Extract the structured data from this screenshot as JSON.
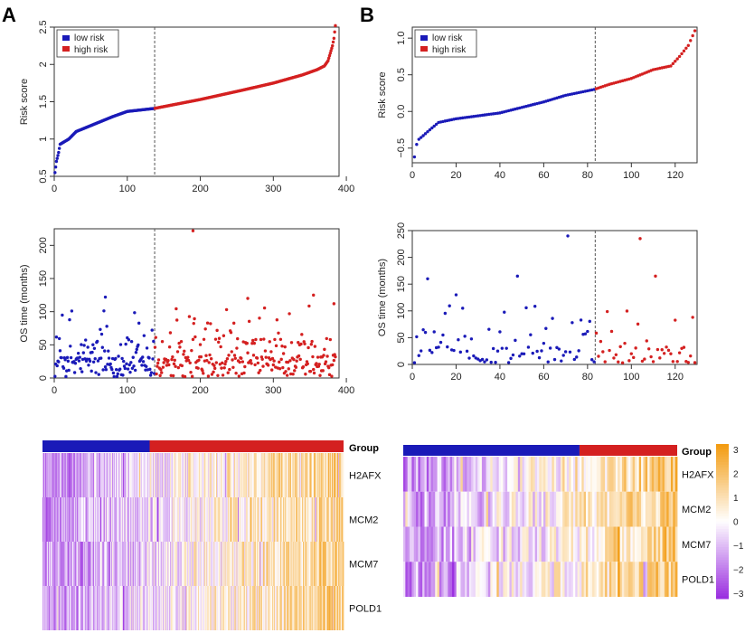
{
  "panel_labels": [
    "A",
    "B"
  ],
  "colors": {
    "low": "#1a1ab8",
    "high": "#d42020",
    "cutoff": "#555555",
    "heat_high": "#f39c12",
    "heat_mid": "#ffffff",
    "heat_low": "#9b30e0"
  },
  "chart_data": [
    {
      "id": "A-risk",
      "type": "scatter",
      "title": "",
      "xlabel": "",
      "ylabel": "Risk score",
      "xlim": [
        0,
        390
      ],
      "ylim": [
        0.5,
        2.5
      ],
      "xticks": [
        0,
        100,
        200,
        300,
        400
      ],
      "yticks": [
        0.5,
        1.0,
        1.5,
        2.0,
        2.5
      ],
      "cutoff": 137,
      "n": 385,
      "legend": {
        "position": "top-left",
        "entries": [
          "low risk",
          "high risk"
        ]
      },
      "curve": [
        [
          1,
          0.55
        ],
        [
          3,
          0.7
        ],
        [
          6,
          0.82
        ],
        [
          8,
          0.93
        ],
        [
          20,
          1.0
        ],
        [
          30,
          1.1
        ],
        [
          60,
          1.22
        ],
        [
          80,
          1.3
        ],
        [
          100,
          1.37
        ],
        [
          137,
          1.41
        ],
        [
          200,
          1.53
        ],
        [
          260,
          1.66
        ],
        [
          300,
          1.75
        ],
        [
          340,
          1.86
        ],
        [
          360,
          1.93
        ],
        [
          370,
          1.98
        ],
        [
          375,
          2.05
        ],
        [
          378,
          2.15
        ],
        [
          381,
          2.25
        ],
        [
          383,
          2.35
        ],
        [
          385,
          2.52
        ]
      ]
    },
    {
      "id": "B-risk",
      "type": "scatter",
      "title": "",
      "xlabel": "",
      "ylabel": "Risk score",
      "xlim": [
        0,
        130
      ],
      "ylim": [
        -0.7,
        1.15
      ],
      "xticks": [
        0,
        20,
        40,
        60,
        80,
        100,
        120
      ],
      "yticks": [
        -0.5,
        0.0,
        0.5,
        1.0
      ],
      "cutoff": 83,
      "n": 129,
      "legend": {
        "position": "top-left",
        "entries": [
          "low risk",
          "high risk"
        ]
      },
      "curve": [
        [
          1,
          -0.62
        ],
        [
          2,
          -0.45
        ],
        [
          3,
          -0.38
        ],
        [
          5,
          -0.33
        ],
        [
          8,
          -0.25
        ],
        [
          12,
          -0.15
        ],
        [
          20,
          -0.1
        ],
        [
          40,
          -0.02
        ],
        [
          60,
          0.13
        ],
        [
          70,
          0.22
        ],
        [
          83,
          0.3
        ],
        [
          90,
          0.37
        ],
        [
          100,
          0.45
        ],
        [
          110,
          0.57
        ],
        [
          118,
          0.62
        ],
        [
          122,
          0.75
        ],
        [
          126,
          0.9
        ],
        [
          129,
          1.1
        ]
      ]
    },
    {
      "id": "A-os",
      "type": "scatter",
      "title": "",
      "xlabel": "",
      "ylabel": "OS time (months)",
      "xlim": [
        0,
        390
      ],
      "ylim": [
        0,
        225
      ],
      "xticks": [
        0,
        100,
        200,
        300,
        400
      ],
      "yticks": [
        0,
        50,
        100,
        150,
        200
      ],
      "cutoff": 137,
      "n": 385
    },
    {
      "id": "B-os",
      "type": "scatter",
      "title": "",
      "xlabel": "",
      "ylabel": "OS time (months)",
      "xlim": [
        0,
        130
      ],
      "ylim": [
        0,
        250
      ],
      "xticks": [
        0,
        20,
        40,
        60,
        80,
        100,
        120
      ],
      "yticks": [
        0,
        50,
        100,
        150,
        200,
        250
      ],
      "cutoff": 83,
      "n": 129,
      "notable_points": [
        [
          7,
          160
        ],
        [
          20,
          130
        ],
        [
          48,
          165
        ],
        [
          71,
          240
        ],
        [
          104,
          235
        ],
        [
          111,
          165
        ],
        [
          128,
          88
        ]
      ]
    },
    {
      "id": "A-heatmap",
      "type": "heatmap",
      "group_label": "Group",
      "rows": [
        "H2AFX",
        "MCM2",
        "MCM7",
        "POLD1"
      ],
      "n_low": 137,
      "n_high": 248
    },
    {
      "id": "B-heatmap",
      "type": "heatmap",
      "group_label": "Group",
      "rows": [
        "H2AFX",
        "MCM2",
        "MCM7",
        "POLD1"
      ],
      "n_low": 83,
      "n_high": 46,
      "colorbar_ticks": [
        "3",
        "2",
        "1",
        "0",
        "−1",
        "−2",
        "−3"
      ]
    }
  ]
}
